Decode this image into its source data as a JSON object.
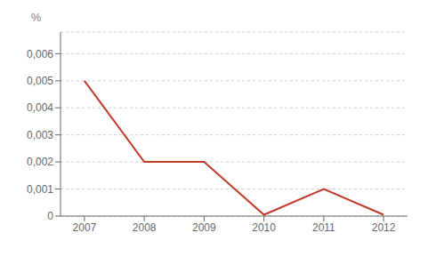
{
  "chart_data": {
    "type": "line",
    "ylabel": "%",
    "x": [
      2007,
      2008,
      2009,
      2010,
      2011,
      2012
    ],
    "values": [
      0.005,
      0.002,
      0.002,
      5e-05,
      0.001,
      5e-05
    ],
    "color": "#c0392b",
    "xlim": [
      2006.6,
      2012.4
    ],
    "xticks": [
      2007,
      2008,
      2009,
      2010,
      2011,
      2012
    ],
    "ylim": [
      0,
      0.0068
    ],
    "yticks": [
      0,
      {
        "value": 0.001,
        "label": "0,001"
      },
      {
        "value": 0.002,
        "label": "0,002"
      },
      {
        "value": 0.003,
        "label": "0,003"
      },
      {
        "value": 0.004,
        "label": "0,004"
      },
      {
        "value": 0.005,
        "label": "0,005"
      },
      {
        "value": 0.006,
        "label": "0,006"
      }
    ],
    "grid": true
  }
}
